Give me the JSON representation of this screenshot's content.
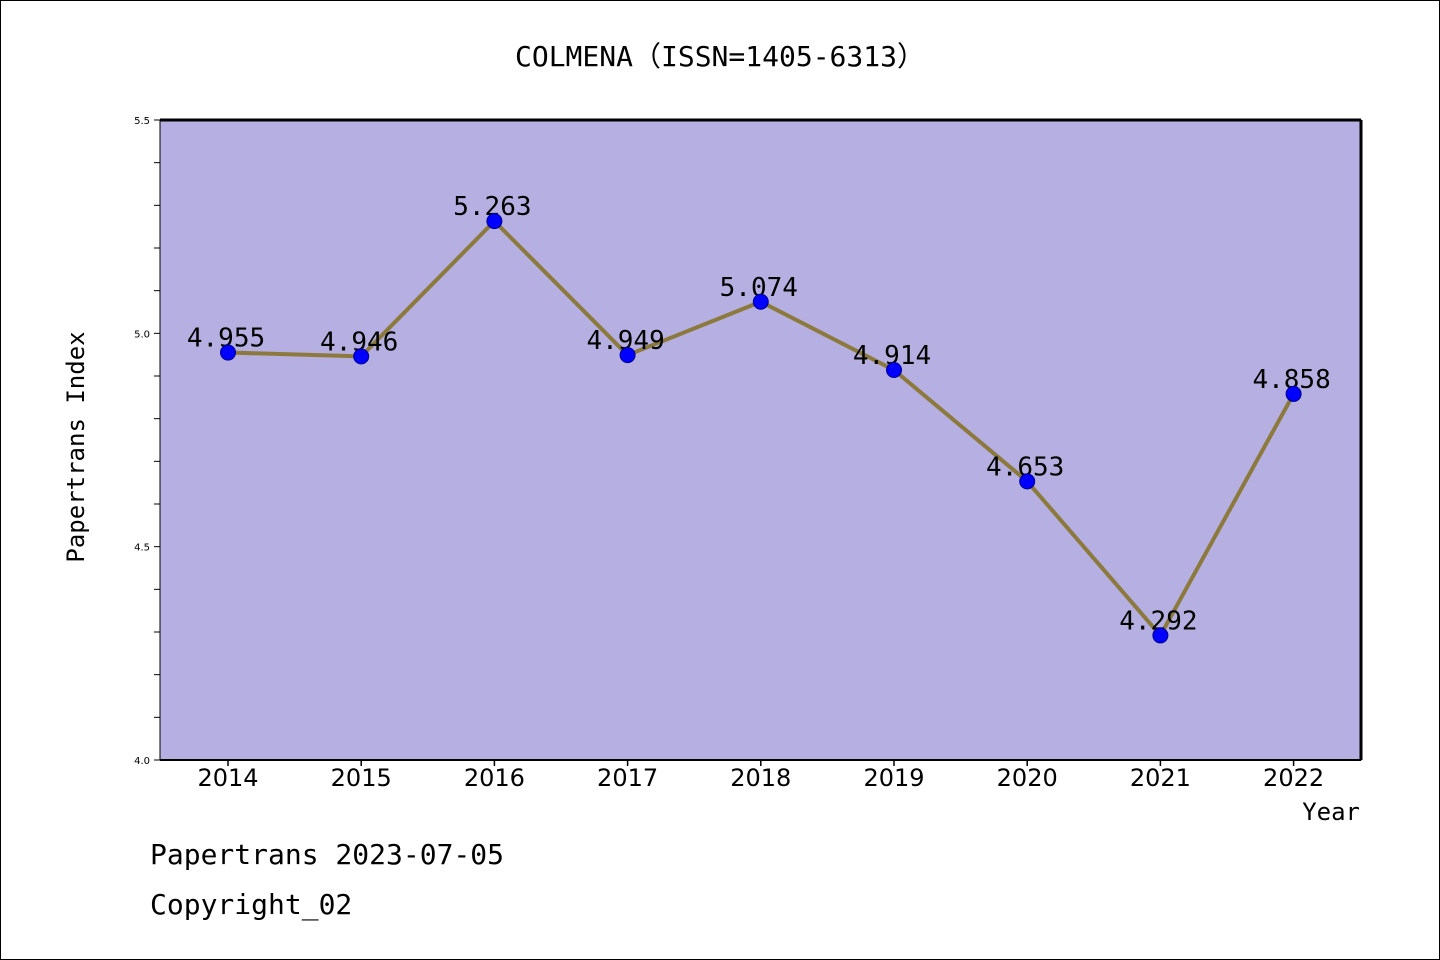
{
  "chart_data": {
    "type": "line",
    "title": "COLMENA（ISSN=1405-6313）",
    "xlabel": "Year",
    "ylabel": "Papertrans Index",
    "categories": [
      "2014",
      "2015",
      "2016",
      "2017",
      "2018",
      "2019",
      "2020",
      "2021",
      "2022"
    ],
    "series": [
      {
        "values": [
          4.955,
          4.946,
          5.263,
          4.949,
          5.074,
          4.914,
          4.653,
          4.292,
          4.858
        ],
        "labels": [
          "4.955",
          "4.946",
          "5.263",
          "4.949",
          "5.074",
          "4.914",
          "4.653",
          "4.292",
          "4.858"
        ]
      }
    ],
    "ylim": [
      4.0,
      5.5
    ],
    "yticks": [
      "4.0",
      "4.5",
      "5.0",
      "5.5"
    ],
    "grid": false,
    "colors": {
      "plot_background": "#b5afe2",
      "line": "#8c7a3c",
      "marker": "#0000ff"
    }
  },
  "footer": {
    "line1": "Papertrans 2023-07-05",
    "line2": "Copyright_02"
  }
}
